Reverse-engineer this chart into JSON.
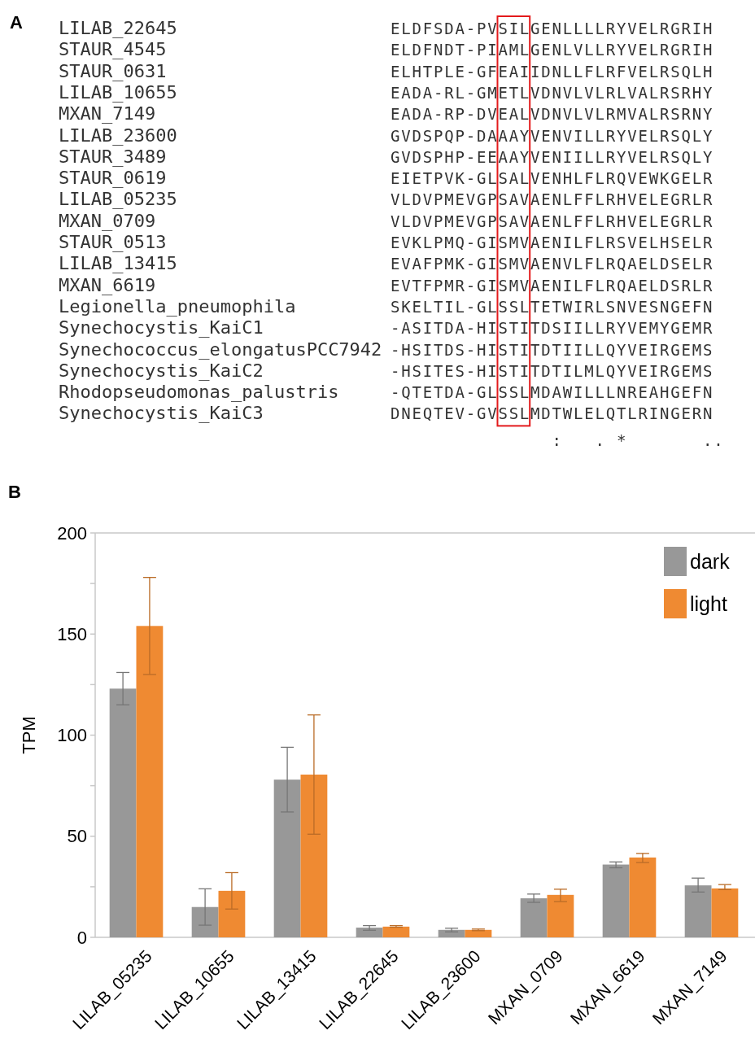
{
  "chart_data": [
    {
      "type": "other",
      "title": "A",
      "categories": [
        "LILAB_22645",
        "STAUR_4545",
        "STAUR_0631",
        "LILAB_10655",
        "MXAN_7149",
        "LILAB_23600",
        "STAUR_3489",
        "STAUR_0619",
        "LILAB_05235",
        "MXAN_0709",
        "STAUR_0513",
        "LILAB_13415",
        "MXAN_6619",
        "Legionella_pneumophila",
        "Synechocystis_KaiC1",
        "Synechococcus_elongatusPCC7942",
        "Synechocystis_KaiC2",
        "Rhodopseudomonas_palustris",
        "Synechocystis_KaiC3"
      ],
      "annotations": [
        "ELDFSDA-PVSILGENLLLLRYVELRGRIH",
        "ELDFNDT-PIAMLGENLVLLRYVELRGRIH",
        "ELHTPLE-GFEAIIDNLLFLRFVELRSQLH",
        "EADA-RL-GMETLVDNVLVLRLVALRSRHY",
        "EADA-RP-DVEALVDNVLVLRMVALRSRNY",
        "GVDSPQP-DAAAYVENVILLRYVELRSQLY",
        "GVDSPHP-EEAAYVENIILLRYVELRSQLY",
        "EIETPVK-GLSALVENHLFLRQVEWKGELR",
        "VLDVPMEVGPSAVAENLFFLRHVELEGRLR",
        "VLDVPMEVGPSAVAENLFFLRHVELEGRLR",
        "EVKLPMQ-GISMVAENILFLRSVELHSELR",
        "EVAFPMK-GISMVAENVLFLRQAELDSELR",
        "EVTFPMR-GISMVAENILFLRQAELDSRLR",
        "SKELTIL-GLSSLTETWIRLSNVESNGEFN",
        "-ASITDA-HISTITDSIILLRYVEMYGEMR",
        "-HSITDS-HISTITDTIILLQYVEIRGEMS",
        "-HSITES-HISTITDTILMLQYVEIRGEMS",
        "-QTETDA-GLSSLMDAWILLLNREAHGEFN",
        "DNEQTEV-GVSSLMDTWLELQTLRINGERN",
        "               :   . *       .."
      ]
    },
    {
      "type": "bar",
      "title": "B",
      "ylabel": "TPM",
      "categories": [
        "LILAB_05235",
        "LILAB_10655",
        "LILAB_13415",
        "LILAB_22645",
        "LILAB_23600",
        "MXAN_0709",
        "MXAN_6619",
        "MXAN_7149"
      ],
      "series": [
        {
          "name": "dark",
          "color": "#989898",
          "values": [
            123,
            15,
            78,
            4.8,
            3.7,
            19.3,
            36,
            25.7
          ],
          "errors": [
            [
              115,
              131
            ],
            [
              6,
              24
            ],
            [
              62,
              94
            ],
            [
              3.5,
              5.8
            ],
            [
              2.7,
              4.5
            ],
            [
              17.3,
              21.4
            ],
            [
              34.4,
              37.3
            ],
            [
              22.4,
              29.3
            ]
          ]
        },
        {
          "name": "light",
          "color": "#ef8a32",
          "values": [
            154,
            23,
            80.5,
            5.3,
            3.7,
            21,
            39.5,
            24.2
          ],
          "errors": [
            [
              130,
              178
            ],
            [
              14,
              32
            ],
            [
              51,
              110
            ],
            [
              5,
              5.8
            ],
            [
              3.3,
              4.1
            ],
            [
              17.7,
              23.8
            ],
            [
              37,
              41.5
            ],
            [
              23.6,
              26.1
            ]
          ]
        }
      ],
      "ylim": [
        0,
        200
      ],
      "yticks": [
        0,
        {
          "value": 25,
          "label": null
        },
        50,
        {
          "value": 75,
          "label": null
        },
        100,
        {
          "value": 125,
          "label": null
        },
        150,
        {
          "value": 175,
          "label": null
        },
        200
      ],
      "legend": "top right"
    }
  ]
}
